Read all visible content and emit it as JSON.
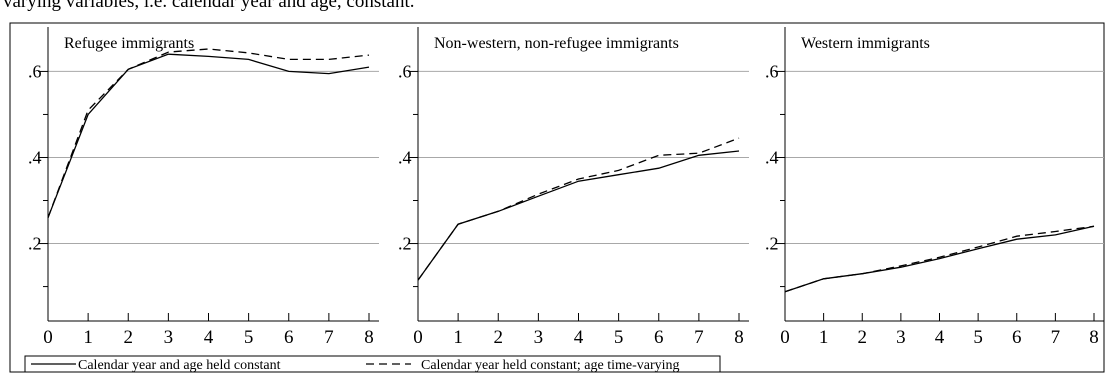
{
  "caption": "varying variables, i.e. calendar year and age, constant.",
  "chart_data": [
    {
      "type": "line",
      "title": "Refugee immigrants",
      "x": [
        0,
        1,
        2,
        3,
        4,
        5,
        6,
        7,
        8
      ],
      "xticks": [
        "0",
        "1",
        "2",
        "3",
        "4",
        "5",
        "6",
        "7",
        "8"
      ],
      "yticks": [
        ".2",
        ".4",
        ".6"
      ],
      "ytick_values": [
        0.2,
        0.4,
        0.6
      ],
      "xlim": [
        0,
        8
      ],
      "ylim": [
        0.02,
        0.68
      ],
      "grid": "horizontal",
      "series": [
        {
          "name": "Calendar year and age held constant",
          "style": "solid",
          "values": [
            0.26,
            0.5,
            0.605,
            0.64,
            0.635,
            0.628,
            0.6,
            0.595,
            0.61
          ]
        },
        {
          "name": "Calendar year held constant; age time-varying",
          "style": "dashed",
          "values": [
            0.26,
            0.51,
            0.605,
            0.645,
            0.652,
            0.643,
            0.628,
            0.628,
            0.638
          ]
        }
      ]
    },
    {
      "type": "line",
      "title": "Non-western, non-refugee immigrants",
      "x": [
        0,
        1,
        2,
        3,
        4,
        5,
        6,
        7,
        8
      ],
      "xticks": [
        "0",
        "1",
        "2",
        "3",
        "4",
        "5",
        "6",
        "7",
        "8"
      ],
      "yticks": [
        ".2",
        ".4",
        ".6"
      ],
      "ytick_values": [
        0.2,
        0.4,
        0.6
      ],
      "xlim": [
        0,
        8
      ],
      "ylim": [
        0.02,
        0.68
      ],
      "grid": "horizontal",
      "series": [
        {
          "name": "Calendar year and age held constant",
          "style": "solid",
          "values": [
            0.115,
            0.245,
            0.275,
            0.31,
            0.345,
            0.36,
            0.375,
            0.405,
            0.415
          ]
        },
        {
          "name": "Calendar year held constant; age time-varying",
          "style": "dashed",
          "values": [
            0.115,
            0.245,
            0.275,
            0.315,
            0.35,
            0.37,
            0.405,
            0.41,
            0.445
          ]
        }
      ]
    },
    {
      "type": "line",
      "title": "Western immigrants",
      "x": [
        0,
        1,
        2,
        3,
        4,
        5,
        6,
        7,
        8
      ],
      "xticks": [
        "0",
        "1",
        "2",
        "3",
        "4",
        "5",
        "6",
        "7",
        "8"
      ],
      "yticks": [
        ".2",
        ".4",
        ".6"
      ],
      "ytick_values": [
        0.2,
        0.4,
        0.6
      ],
      "xlim": [
        0,
        8
      ],
      "ylim": [
        0.02,
        0.68
      ],
      "grid": "horizontal",
      "series": [
        {
          "name": "Calendar year and age held constant",
          "style": "solid",
          "values": [
            0.088,
            0.118,
            0.13,
            0.145,
            0.165,
            0.188,
            0.21,
            0.22,
            0.24
          ]
        },
        {
          "name": "Calendar year held constant; age time-varying",
          "style": "dashed",
          "values": [
            0.088,
            0.118,
            0.13,
            0.148,
            0.168,
            0.192,
            0.217,
            0.228,
            0.24
          ]
        }
      ]
    }
  ],
  "legend": {
    "placement": "bottom-left",
    "items": [
      {
        "label": "Calendar year and age held constant",
        "style": "solid"
      },
      {
        "label": "Calendar year held constant; age time-varying",
        "style": "dashed"
      }
    ]
  }
}
